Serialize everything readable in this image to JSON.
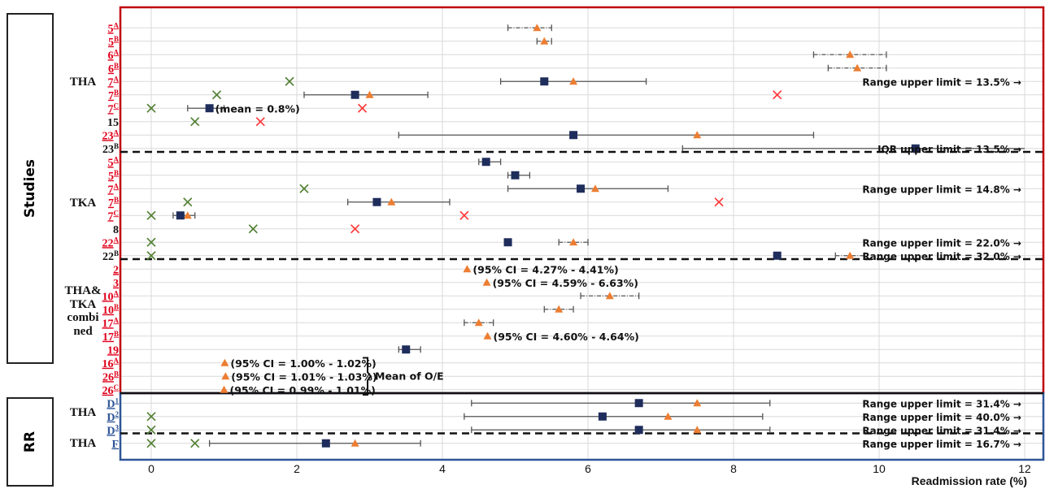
{
  "colors": {
    "red_box": "#c0000c",
    "blue_box": "#2f5597",
    "study_link_red": "#e0001b",
    "study_link_blue": "#2f5597",
    "mean": "#1f2d5c",
    "median": "#ed7d31",
    "min_marker": "#548235",
    "max_marker": "#ff3a3a",
    "whisker": "#555555",
    "grid": "#d9d9d9"
  },
  "side_labels": {
    "studies": "Studies",
    "rr": "RR"
  },
  "group_labels": {
    "tha": "THA",
    "tka": "TKA",
    "combined": [
      "THA&",
      "TKA",
      "combi",
      "ned"
    ],
    "rr_tha_1": "THA",
    "rr_tha_2": "THA"
  },
  "brace_label": "Mean of O/E",
  "chart_data": {
    "type": "scatter",
    "xlabel": "Readmission rate (%)",
    "xlim": [
      0,
      12
    ],
    "xticks": [
      0,
      2,
      4,
      6,
      8,
      10,
      12
    ],
    "grid": true,
    "series_legend": "none",
    "rows": [
      {
        "id": "5",
        "sup": "A",
        "color": "red",
        "link": true,
        "median": 5.3,
        "ci": [
          4.9,
          5.5
        ],
        "ci_style": "dashdot"
      },
      {
        "id": "5",
        "sup": "B",
        "color": "red",
        "link": true,
        "median": 5.4,
        "ci": [
          5.3,
          5.5
        ],
        "ci_style": "dashdot"
      },
      {
        "id": "6",
        "sup": "A",
        "color": "red",
        "link": true,
        "median": 9.6,
        "ci": [
          9.1,
          10.1
        ],
        "ci_style": "dashdot"
      },
      {
        "id": "6",
        "sup": "B",
        "color": "red",
        "link": true,
        "median": 9.7,
        "ci": [
          9.3,
          10.1
        ],
        "ci_style": "dashdot"
      },
      {
        "id": "7",
        "sup": "A",
        "color": "red",
        "link": true,
        "mean": 5.4,
        "median": 5.8,
        "ci": [
          4.8,
          6.8
        ],
        "ci_style": "solid",
        "min": 1.9,
        "note": "Range upper limit = 13.5% →"
      },
      {
        "id": "7",
        "sup": "B",
        "color": "red",
        "link": true,
        "mean": 2.8,
        "median": 3.0,
        "ci": [
          2.1,
          3.8
        ],
        "ci_style": "solid",
        "min": 0.9,
        "max": 8.6
      },
      {
        "id": "7",
        "sup": "C",
        "color": "red",
        "link": true,
        "mean": 0.8,
        "ci": [
          0.5,
          1.0
        ],
        "ci_style": "solid",
        "min": 0.0,
        "max": 2.9,
        "label": "(mean = 0.8%)"
      },
      {
        "id": "15",
        "sup": "",
        "color": "black",
        "link": false,
        "min": 0.6,
        "max": 1.5
      },
      {
        "id": "23",
        "sup": "A",
        "color": "red",
        "link": true,
        "mean": 5.8,
        "median": 7.5,
        "ci": [
          3.4,
          9.1
        ],
        "ci_style": "solid"
      },
      {
        "id": "23",
        "sup": "B",
        "color": "black",
        "link": false,
        "mean": 10.5,
        "ci": [
          7.3,
          12
        ],
        "ci_style": "solid",
        "note": "IQR upper limit = 13.5% →",
        "divider_after": true
      },
      {
        "id": "5",
        "sup": "A",
        "color": "red",
        "link": true,
        "mean": 4.6,
        "ci": [
          4.5,
          4.8
        ],
        "ci_style": "solid"
      },
      {
        "id": "5",
        "sup": "B",
        "color": "red",
        "link": true,
        "mean": 5.0,
        "ci": [
          4.9,
          5.2
        ],
        "ci_style": "solid"
      },
      {
        "id": "7",
        "sup": "A",
        "color": "red",
        "link": true,
        "mean": 5.9,
        "median": 6.1,
        "ci": [
          4.9,
          7.1
        ],
        "ci_style": "solid",
        "min": 2.1,
        "note": "Range upper limit = 14.8% →"
      },
      {
        "id": "7",
        "sup": "B",
        "color": "red",
        "link": true,
        "mean": 3.1,
        "median": 3.3,
        "ci": [
          2.7,
          4.1
        ],
        "ci_style": "solid",
        "min": 0.5,
        "max": 7.8
      },
      {
        "id": "7",
        "sup": "C",
        "color": "red",
        "link": true,
        "mean": 0.4,
        "median": 0.5,
        "ci": [
          0.3,
          0.6
        ],
        "ci_style": "solid",
        "min": 0.0,
        "max": 4.3
      },
      {
        "id": "8",
        "sup": "",
        "color": "black",
        "link": false,
        "min": 1.4,
        "max": 2.8
      },
      {
        "id": "22",
        "sup": "A",
        "color": "red",
        "link": true,
        "mean": 4.9,
        "median": 5.8,
        "ci": [
          5.6,
          6.0
        ],
        "ci_style": "dashdot",
        "min": 0.0,
        "note": "Range upper limit = 22.0% →"
      },
      {
        "id": "22",
        "sup": "B",
        "color": "black",
        "link": false,
        "mean": 8.6,
        "median": 9.6,
        "ci": [
          9.4,
          9.8
        ],
        "ci_style": "dashdot",
        "min": 0.0,
        "note": "Range upper limit = 32.0% →",
        "divider_after": true
      },
      {
        "id": "2",
        "sup": "",
        "color": "red",
        "link": true,
        "median": 4.34,
        "label": "(95% CI = 4.27% - 4.41%)"
      },
      {
        "id": "3",
        "sup": "",
        "color": "red",
        "link": true,
        "median": 4.61,
        "label": "(95% CI = 4.59% - 6.63%)"
      },
      {
        "id": "10",
        "sup": "A",
        "color": "red",
        "link": true,
        "median": 6.3,
        "ci": [
          5.9,
          6.7
        ],
        "ci_style": "dashdot"
      },
      {
        "id": "10",
        "sup": "B",
        "color": "red",
        "link": true,
        "median": 5.6,
        "ci": [
          5.4,
          5.8
        ],
        "ci_style": "dashdot"
      },
      {
        "id": "17",
        "sup": "A",
        "color": "red",
        "link": true,
        "median": 4.5,
        "ci": [
          4.3,
          4.7
        ],
        "ci_style": "dashdot"
      },
      {
        "id": "17",
        "sup": "B",
        "color": "red",
        "link": true,
        "median": 4.62,
        "label": "(95% CI = 4.60% - 4.64%)"
      },
      {
        "id": "19",
        "sup": "",
        "color": "red",
        "link": true,
        "mean": 3.5,
        "ci": [
          3.4,
          3.7
        ],
        "ci_style": "solid"
      },
      {
        "id": "16",
        "sup": "A",
        "color": "red",
        "link": true,
        "median": 1.01,
        "label": "(95% CI = 1.00% - 1.02%)"
      },
      {
        "id": "26",
        "sup": "B",
        "color": "red",
        "link": true,
        "median": 1.02,
        "label": "(95% CI = 1.01% - 1.03%)"
      },
      {
        "id": "26",
        "sup": "C",
        "color": "red",
        "link": true,
        "median": 1.0,
        "label": "(95% CI = 0.99% - 1.01%)"
      },
      {
        "id": "D",
        "sup": "1",
        "color": "blue",
        "link": true,
        "mean": 6.7,
        "median": 7.5,
        "ci": [
          4.4,
          8.5
        ],
        "ci_style": "solid",
        "note": "Range upper limit = 31.4% →"
      },
      {
        "id": "D",
        "sup": "2",
        "color": "blue",
        "link": true,
        "mean": 6.2,
        "median": 7.1,
        "ci": [
          4.3,
          8.4
        ],
        "ci_style": "solid",
        "min": 0.0,
        "note": "Range upper limit = 40.0% →"
      },
      {
        "id": "D",
        "sup": "3",
        "color": "blue",
        "link": true,
        "mean": 6.7,
        "median": 7.5,
        "ci": [
          4.4,
          8.5
        ],
        "ci_style": "solid",
        "min": 0.0,
        "note": "Range upper limit = 31.4% →",
        "divider_after": true
      },
      {
        "id": "F",
        "sup": "",
        "color": "blue",
        "link": true,
        "mean": 2.4,
        "median": 2.8,
        "ci": [
          0.8,
          3.7
        ],
        "ci_style": "solid",
        "min": 0.0,
        "min2": 0.6,
        "note": "Range upper limit = 16.7% →"
      }
    ]
  }
}
